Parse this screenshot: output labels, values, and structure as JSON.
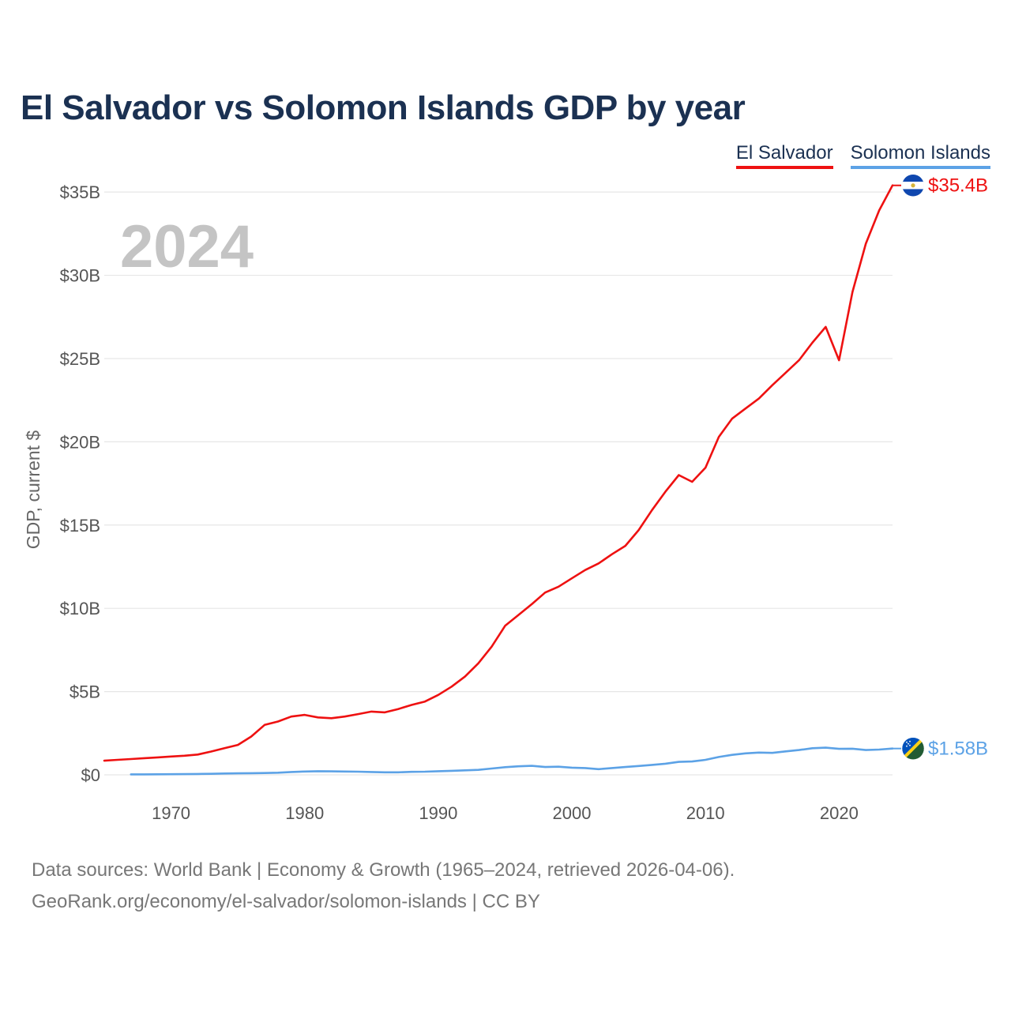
{
  "title": "El Salvador vs Solomon Islands GDP by year",
  "legend": {
    "items": [
      {
        "label": "El Salvador",
        "color": "#ee1111"
      },
      {
        "label": "Solomon Islands",
        "color": "#5ca2e6"
      }
    ]
  },
  "chart_data": {
    "type": "line",
    "title": "El Salvador vs Solomon Islands GDP by year",
    "xlabel": "",
    "ylabel": "GDP, current $",
    "year_label": "2024",
    "xlim": [
      1965,
      2024
    ],
    "ylim": [
      0,
      37000000000
    ],
    "x_ticks": [
      1970,
      1980,
      1990,
      2000,
      2010,
      2020
    ],
    "x_tick_labels": [
      "1970",
      "1980",
      "1990",
      "2000",
      "2010",
      "2020"
    ],
    "y_ticks": [
      0,
      5000000000,
      10000000000,
      15000000000,
      20000000000,
      25000000000,
      30000000000,
      35000000000
    ],
    "y_tick_labels": [
      "$0",
      "$5B",
      "$10B",
      "$15B",
      "$20B",
      "$25B",
      "$30B",
      "$35B"
    ],
    "grid": true,
    "series": [
      {
        "name": "El Salvador",
        "color": "#ee1111",
        "end_label": "$35.4B",
        "flag_icon": "el-salvador-flag-icon",
        "x": [
          1965,
          1966,
          1967,
          1968,
          1969,
          1970,
          1971,
          1972,
          1973,
          1974,
          1975,
          1976,
          1977,
          1978,
          1979,
          1980,
          1981,
          1982,
          1983,
          1984,
          1985,
          1986,
          1987,
          1988,
          1989,
          1990,
          1991,
          1992,
          1993,
          1994,
          1995,
          1996,
          1997,
          1998,
          1999,
          2000,
          2001,
          2002,
          2003,
          2004,
          2005,
          2006,
          2007,
          2008,
          2009,
          2010,
          2011,
          2012,
          2013,
          2014,
          2015,
          2016,
          2017,
          2018,
          2019,
          2020,
          2021,
          2022,
          2023,
          2024
        ],
        "values": [
          850000000.0,
          900000000.0,
          950000000.0,
          1000000000.0,
          1050000000.0,
          1100000000.0,
          1150000000.0,
          1220000000.0,
          1400000000.0,
          1600000000.0,
          1800000000.0,
          2300000000.0,
          3000000000.0,
          3200000000.0,
          3500000000.0,
          3600000000.0,
          3450000000.0,
          3400000000.0,
          3500000000.0,
          3650000000.0,
          3800000000.0,
          3750000000.0,
          3950000000.0,
          4200000000.0,
          4400000000.0,
          4800000000.0,
          5300000000.0,
          5900000000.0,
          6700000000.0,
          7700000000.0,
          8950000000.0,
          9600000000.0,
          10250000000.0,
          10950000000.0,
          11300000000.0,
          11800000000.0,
          12300000000.0,
          12700000000.0,
          13250000000.0,
          13750000000.0,
          14700000000.0,
          15900000000.0,
          17000000000.0,
          18000000000.0,
          17600000000.0,
          18450000000.0,
          20300000000.0,
          21400000000.0,
          22000000000.0,
          22600000000.0,
          23400000000.0,
          24150000000.0,
          24900000000.0,
          25950000000.0,
          26900000000.0,
          24900000000.0,
          29000000000.0,
          31900000000.0,
          33900000000.0,
          35400000000.0
        ]
      },
      {
        "name": "Solomon Islands",
        "color": "#5ca2e6",
        "end_label": "$1.58B",
        "flag_icon": "solomon-islands-flag-icon",
        "x": [
          1967,
          1968,
          1969,
          1970,
          1971,
          1972,
          1973,
          1974,
          1975,
          1976,
          1977,
          1978,
          1979,
          1980,
          1981,
          1982,
          1983,
          1984,
          1985,
          1986,
          1987,
          1988,
          1989,
          1990,
          1991,
          1992,
          1993,
          1994,
          1995,
          1996,
          1997,
          1998,
          1999,
          2000,
          2001,
          2002,
          2003,
          2004,
          2005,
          2006,
          2007,
          2008,
          2009,
          2010,
          2011,
          2012,
          2013,
          2014,
          2015,
          2016,
          2017,
          2018,
          2019,
          2020,
          2021,
          2022,
          2023,
          2024
        ],
        "values": [
          30000000.0,
          30000000.0,
          35000000.0,
          40000000.0,
          45000000.0,
          50000000.0,
          60000000.0,
          80000000.0,
          90000000.0,
          100000000.0,
          110000000.0,
          130000000.0,
          170000000.0,
          200000000.0,
          220000000.0,
          210000000.0,
          200000000.0,
          190000000.0,
          170000000.0,
          150000000.0,
          150000000.0,
          180000000.0,
          190000000.0,
          220000000.0,
          240000000.0,
          270000000.0,
          300000000.0,
          380000000.0,
          460000000.0,
          510000000.0,
          540000000.0,
          470000000.0,
          490000000.0,
          430000000.0,
          410000000.0,
          340000000.0,
          410000000.0,
          470000000.0,
          530000000.0,
          600000000.0,
          670000000.0,
          780000000.0,
          800000000.0,
          900000000.0,
          1070000000.0,
          1200000000.0,
          1290000000.0,
          1340000000.0,
          1320000000.0,
          1410000000.0,
          1490000000.0,
          1600000000.0,
          1630000000.0,
          1560000000.0,
          1570000000.0,
          1490000000.0,
          1520000000.0,
          1580000000.0
        ]
      }
    ]
  },
  "footer": {
    "source": "Data sources: World Bank | Economy & Growth (1965–2024, retrieved 2026-04-06).",
    "credit": "GeoRank.org/economy/el-salvador/solomon-islands | CC BY"
  }
}
